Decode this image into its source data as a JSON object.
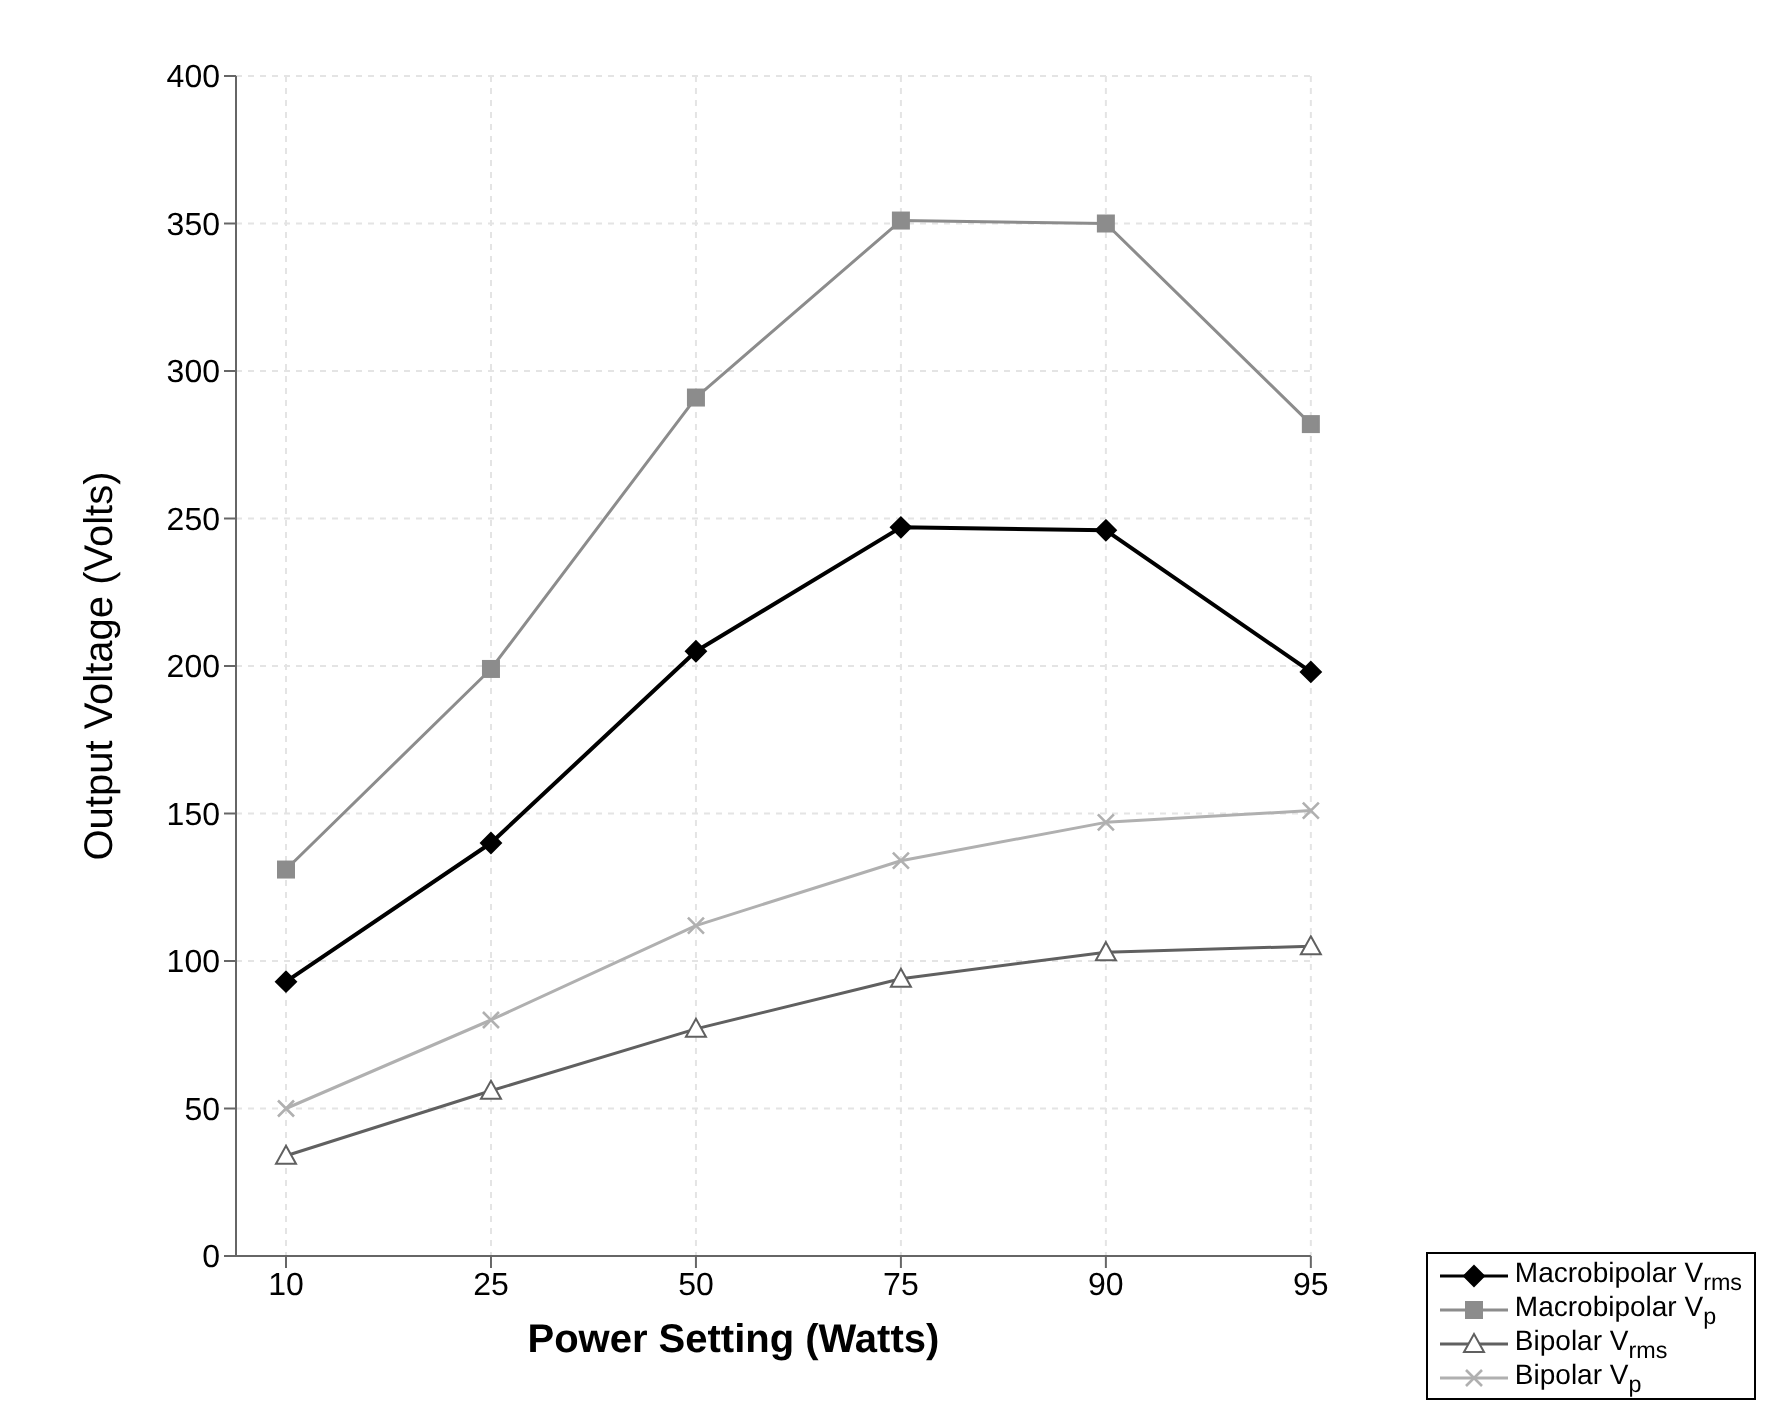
{
  "chart_data": {
    "type": "line",
    "xlabel": "Power Setting (Watts)",
    "ylabel": "Output Voltage (Volts)",
    "categories": [
      "10",
      "25",
      "50",
      "75",
      "90",
      "95"
    ],
    "series": [
      {
        "name": "Macrobipolar V$_{rms}$",
        "color": "#000000",
        "marker": "diamond",
        "values": [
          93,
          140,
          205,
          247,
          246,
          198
        ]
      },
      {
        "name": "Macrobipolar V$_{p}$",
        "color": "#8c8c8c",
        "marker": "square",
        "values": [
          131,
          199,
          291,
          351,
          350,
          282
        ]
      },
      {
        "name": "Bipolar V$_{rms}$",
        "color": "#606060",
        "marker": "triangle",
        "values": [
          34,
          56,
          77,
          94,
          103,
          105
        ]
      },
      {
        "name": "Bipolar V$_{p}$",
        "color": "#b0b0b0",
        "marker": "cross",
        "values": [
          50,
          80,
          112,
          134,
          147,
          151
        ]
      }
    ],
    "ylim": [
      0,
      400
    ],
    "yticks": [
      0,
      50,
      100,
      150,
      200,
      250,
      300,
      350,
      400
    ],
    "grid": true,
    "legend": "bottom right"
  }
}
